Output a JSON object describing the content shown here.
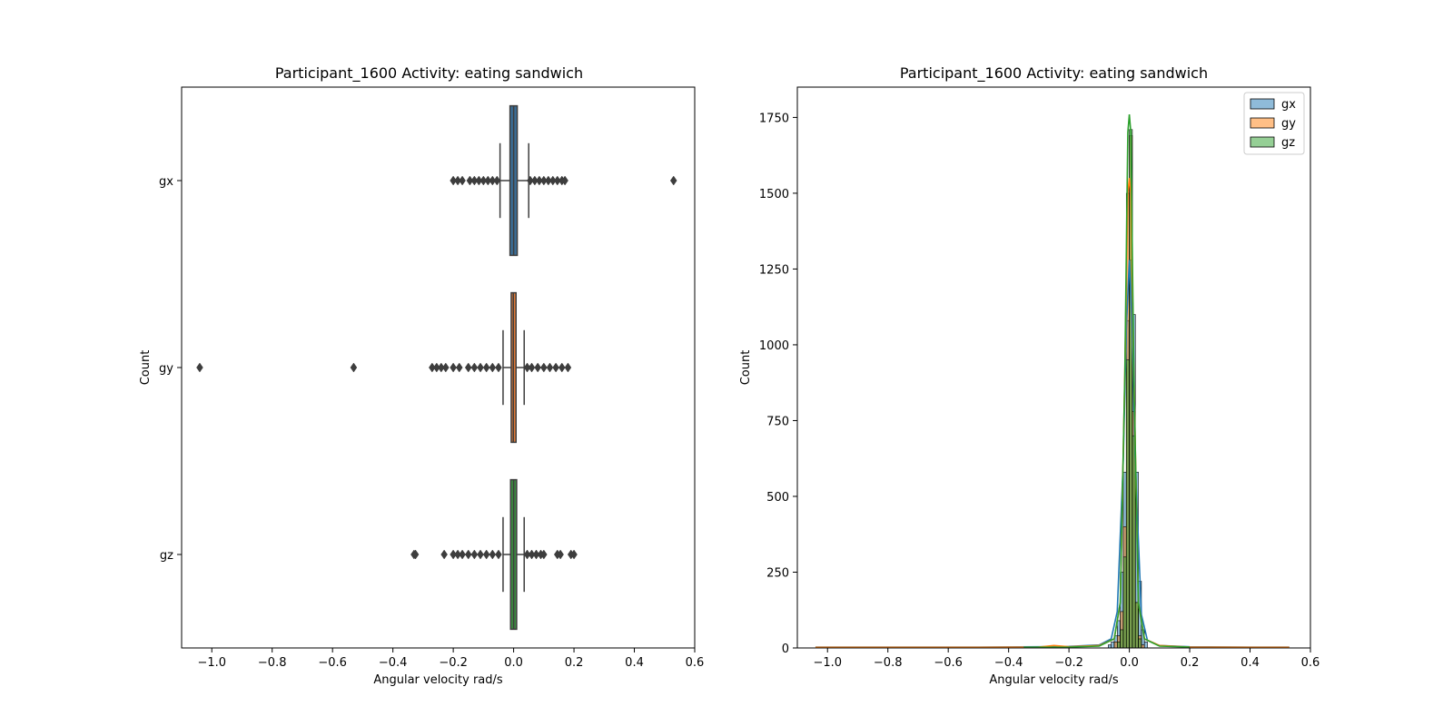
{
  "figure": {
    "left_panel": {
      "title": "Participant_1600  Activity: eating sandwich"
    },
    "right_panel": {
      "title": "Participant_1600  Activity: eating sandwich"
    }
  },
  "colors": {
    "gx": "#1f77b4",
    "gy": "#ff7f0e",
    "gz": "#2ca02c",
    "box_gx": "#3a6d96",
    "box_gy": "#e07b39",
    "box_gz": "#3b8a3f",
    "outline": "#3d3d3d"
  },
  "chart_data": [
    {
      "type": "box",
      "title": "Participant_1600  Activity: eating sandwich",
      "xlabel": "Angular velocity rad/s",
      "ylabel": "Count",
      "xlim": [
        -1.1,
        0.6
      ],
      "x_ticks": [
        "−1.0",
        "−0.8",
        "−0.6",
        "−0.4",
        "−0.2",
        "0.0",
        "0.2",
        "0.4",
        "0.6"
      ],
      "x_tick_values": [
        -1.0,
        -0.8,
        -0.6,
        -0.4,
        -0.2,
        0.0,
        0.2,
        0.4,
        0.6
      ],
      "categories": [
        "gx",
        "gy",
        "gz"
      ],
      "boxes": [
        {
          "name": "gx",
          "q1": -0.012,
          "median": 0.0,
          "q3": 0.012,
          "whisker_low": -0.045,
          "whisker_high": 0.05,
          "outliers": [
            -0.2,
            -0.185,
            -0.17,
            -0.145,
            -0.13,
            -0.115,
            -0.1,
            -0.085,
            -0.07,
            -0.055,
            0.055,
            0.07,
            0.085,
            0.1,
            0.115,
            0.13,
            0.145,
            0.16,
            0.17,
            0.53
          ]
        },
        {
          "name": "gy",
          "q1": -0.008,
          "median": -0.001,
          "q3": 0.008,
          "whisker_low": -0.035,
          "whisker_high": 0.035,
          "outliers": [
            -1.04,
            -0.53,
            -0.27,
            -0.255,
            -0.24,
            -0.225,
            -0.2,
            -0.18,
            -0.15,
            -0.13,
            -0.11,
            -0.09,
            -0.07,
            -0.05,
            0.045,
            0.06,
            0.08,
            0.1,
            0.12,
            0.14,
            0.16,
            0.18
          ]
        },
        {
          "name": "gz",
          "q1": -0.01,
          "median": 0.0,
          "q3": 0.01,
          "whisker_low": -0.035,
          "whisker_high": 0.035,
          "outliers": [
            -0.33,
            -0.325,
            -0.23,
            -0.2,
            -0.185,
            -0.17,
            -0.15,
            -0.13,
            -0.11,
            -0.09,
            -0.07,
            -0.05,
            0.045,
            0.06,
            0.075,
            0.09,
            0.1,
            0.145,
            0.155,
            0.19,
            0.2
          ]
        }
      ]
    },
    {
      "type": "histogram",
      "title": "Participant_1600  Activity: eating sandwich",
      "xlabel": "Angular velocity rad/s",
      "ylabel": "Count",
      "xlim": [
        -1.1,
        0.6
      ],
      "ylim": [
        0,
        1850
      ],
      "x_ticks": [
        "−1.0",
        "−0.8",
        "−0.6",
        "−0.4",
        "−0.2",
        "0.0",
        "0.2",
        "0.4",
        "0.6"
      ],
      "x_tick_values": [
        -1.0,
        -0.8,
        -0.6,
        -0.4,
        -0.2,
        0.0,
        0.2,
        0.4,
        0.6
      ],
      "y_ticks": [
        "0",
        "250",
        "500",
        "750",
        "1000",
        "1250",
        "1500",
        "1750"
      ],
      "y_tick_values": [
        0,
        250,
        500,
        750,
        1000,
        1250,
        1500,
        1750
      ],
      "legend": {
        "placement": "top-right",
        "entries": [
          "gx",
          "gy",
          "gz"
        ]
      },
      "bin_width": 0.01,
      "series": [
        {
          "name": "gx",
          "bin_left": [
            -0.07,
            -0.06,
            -0.05,
            -0.04,
            -0.03,
            -0.02,
            -0.01,
            0.0,
            0.01,
            0.02,
            0.03,
            0.04,
            0.05
          ],
          "counts": [
            10,
            20,
            40,
            90,
            250,
            580,
            1080,
            1280,
            1100,
            580,
            220,
            60,
            20
          ],
          "kde_x": [
            -1.04,
            -0.8,
            -0.5,
            -0.3,
            -0.2,
            -0.1,
            -0.06,
            -0.04,
            -0.02,
            -0.01,
            0.0,
            0.01,
            0.02,
            0.04,
            0.06,
            0.1,
            0.2,
            0.4,
            0.53
          ],
          "kde_y": [
            3,
            3,
            3,
            4,
            5,
            10,
            30,
            120,
            620,
            1050,
            1280,
            1050,
            600,
            110,
            25,
            8,
            4,
            3,
            3
          ]
        },
        {
          "name": "gy",
          "bin_left": [
            -0.05,
            -0.04,
            -0.03,
            -0.02,
            -0.01,
            0.0,
            0.01,
            0.02,
            0.03,
            0.04
          ],
          "counts": [
            20,
            40,
            120,
            400,
            1500,
            1690,
            780,
            150,
            40,
            10
          ],
          "kde_x": [
            -1.04,
            -0.5,
            -0.3,
            -0.25,
            -0.2,
            -0.1,
            -0.05,
            -0.03,
            -0.015,
            -0.005,
            0.0,
            0.005,
            0.015,
            0.03,
            0.05,
            0.1,
            0.2,
            0.4,
            0.53
          ],
          "kde_y": [
            2,
            2,
            3,
            8,
            4,
            8,
            30,
            150,
            900,
            1500,
            1550,
            1500,
            900,
            150,
            30,
            8,
            3,
            2,
            2
          ]
        },
        {
          "name": "gz",
          "bin_left": [
            -0.04,
            -0.03,
            -0.02,
            -0.01,
            0.0,
            0.01,
            0.02,
            0.03
          ],
          "counts": [
            20,
            60,
            300,
            950,
            1710,
            700,
            150,
            30
          ],
          "kde_x": [
            -0.35,
            -0.2,
            -0.1,
            -0.05,
            -0.03,
            -0.015,
            -0.005,
            0.0,
            0.005,
            0.015,
            0.03,
            0.05,
            0.1,
            0.2
          ],
          "kde_y": [
            2,
            3,
            6,
            30,
            150,
            900,
            1700,
            1760,
            1700,
            900,
            150,
            30,
            6,
            3
          ]
        }
      ]
    }
  ]
}
